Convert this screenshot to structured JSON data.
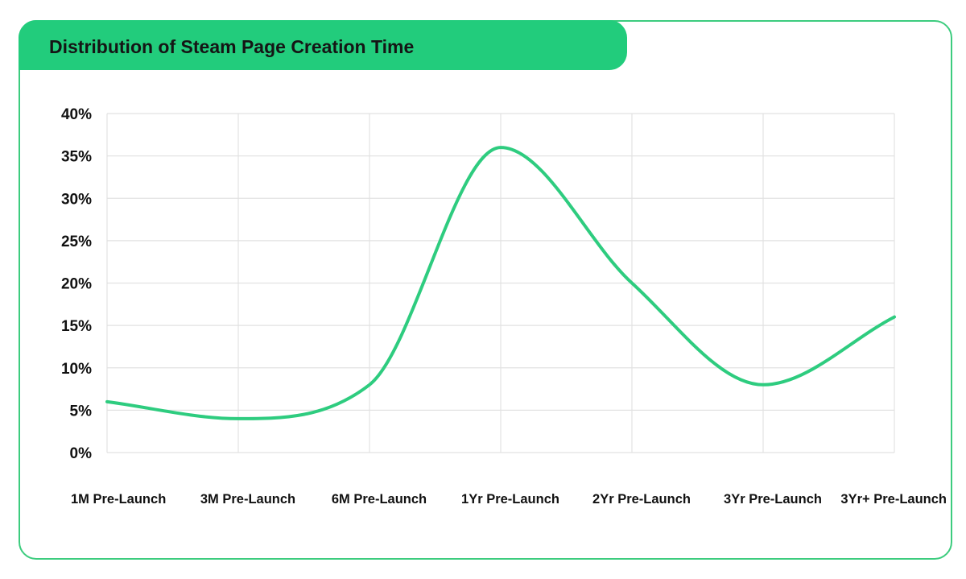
{
  "header": {
    "title": "Distribution of Steam Page Creation Time"
  },
  "colors": {
    "accent": "#22cc7c",
    "line": "#2ecc7f",
    "border": "#3ccc7e",
    "grid": "#e2e2e2"
  },
  "chart_data": {
    "type": "line",
    "title": "Distribution of Steam Page Creation Time",
    "xlabel": "",
    "ylabel": "",
    "categories": [
      "1M Pre-Launch",
      "3M Pre-Launch",
      "6M Pre-Launch",
      "1Yr Pre-Launch",
      "2Yr Pre-Launch",
      "3Yr Pre-Launch",
      "3Yr+ Pre-Launch"
    ],
    "series": [
      {
        "values": [
          6,
          4,
          8,
          36,
          20,
          8,
          16
        ]
      }
    ],
    "ylim": [
      0,
      40
    ],
    "yticks": [
      0,
      5,
      10,
      15,
      20,
      25,
      30,
      35,
      40
    ],
    "ytick_labels": [
      "0%",
      "5%",
      "10%",
      "15%",
      "20%",
      "25%",
      "30%",
      "35%",
      "40%"
    ],
    "grid": true,
    "smooth": true,
    "legend": "none"
  }
}
